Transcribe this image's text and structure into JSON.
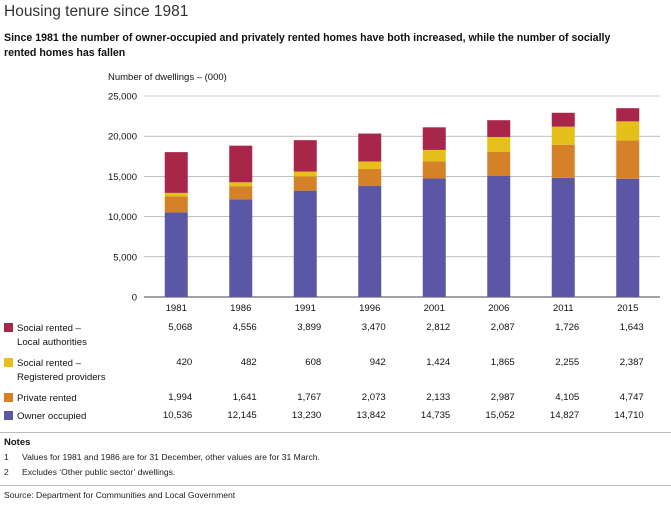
{
  "title": "Housing tenure since 1981",
  "subtitle": "Since 1981 the number of owner-occupied and privately rented homes have both increased, while the number of socially rented homes has fallen",
  "chart_data": {
    "type": "bar",
    "stacked": true,
    "ylabel": "Number of dwellings – (000)",
    "ylim": [
      0,
      25000
    ],
    "yticks": [
      "0",
      "5,000",
      "10,000",
      "15,000",
      "20,000",
      "25,000"
    ],
    "ytick_values": [
      0,
      5000,
      10000,
      15000,
      20000,
      25000
    ],
    "categories": [
      "1981",
      "1986",
      "1991",
      "1996",
      "2001",
      "2006",
      "2011",
      "2015"
    ],
    "series": [
      {
        "name": "Owner occupied",
        "color": "#5b56a6",
        "values": [
          10536,
          12145,
          13230,
          13842,
          14735,
          15052,
          14827,
          14710
        ],
        "labels": [
          "10,536",
          "12,145",
          "13,230",
          "13,842",
          "14,735",
          "15,052",
          "14,827",
          "14,710"
        ]
      },
      {
        "name": "Private rented",
        "color": "#d58128",
        "values": [
          1994,
          1641,
          1767,
          2073,
          2133,
          2987,
          4105,
          4747
        ],
        "labels": [
          "1,994",
          "1,641",
          "1,767",
          "2,073",
          "2,133",
          "2,987",
          "4,105",
          "4,747"
        ]
      },
      {
        "name_lines": [
          "Social rented –",
          "Registered providers"
        ],
        "color": "#e5bf1a",
        "values": [
          420,
          482,
          608,
          942,
          1424,
          1865,
          2255,
          2387
        ],
        "labels": [
          "420",
          "482",
          "608",
          "942",
          "1,424",
          "1,865",
          "2,255",
          "2,387"
        ]
      },
      {
        "name_lines": [
          "Social rented –",
          "Local authorities"
        ],
        "color": "#a7264a",
        "values": [
          5068,
          4556,
          3899,
          3470,
          2812,
          2087,
          1726,
          1643
        ],
        "labels": [
          "5,068",
          "4,556",
          "3,899",
          "3,470",
          "2,812",
          "2,087",
          "1,726",
          "1,643"
        ]
      }
    ],
    "grid": true,
    "legend": "table-left"
  },
  "notes": {
    "heading": "Notes",
    "items": [
      {
        "num": "1",
        "text": "Values for 1981 and 1986 are for 31 December, other values are for 31 March."
      },
      {
        "num": "2",
        "text": "Excludes ‘Other public sector’ dwellings."
      }
    ]
  },
  "source": "Source: Department for Communities and Local Government"
}
